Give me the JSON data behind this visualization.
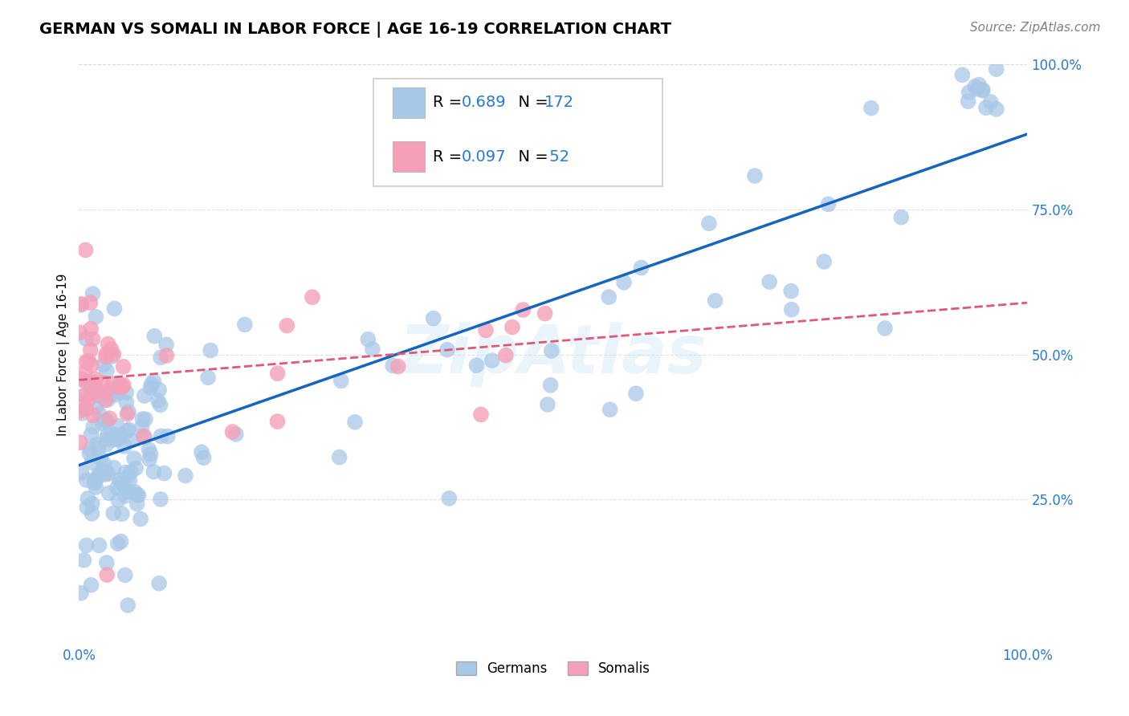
{
  "title": "GERMAN VS SOMALI IN LABOR FORCE | AGE 16-19 CORRELATION CHART",
  "source": "Source: ZipAtlas.com",
  "ylabel": "In Labor Force | Age 16-19",
  "german_R": 0.689,
  "german_N": 172,
  "somali_R": 0.097,
  "somali_N": 52,
  "german_color": "#a8c8e8",
  "somali_color": "#f4a0b8",
  "german_line_color": "#1565c0",
  "somali_line_color": "#e05878",
  "label_color": "#2979d0",
  "background_color": "#ffffff",
  "grid_color": "#dddddd",
  "watermark": "ZipAtlas",
  "title_fontsize": 14,
  "source_fontsize": 11,
  "tick_fontsize": 12,
  "legend_fontsize": 14
}
